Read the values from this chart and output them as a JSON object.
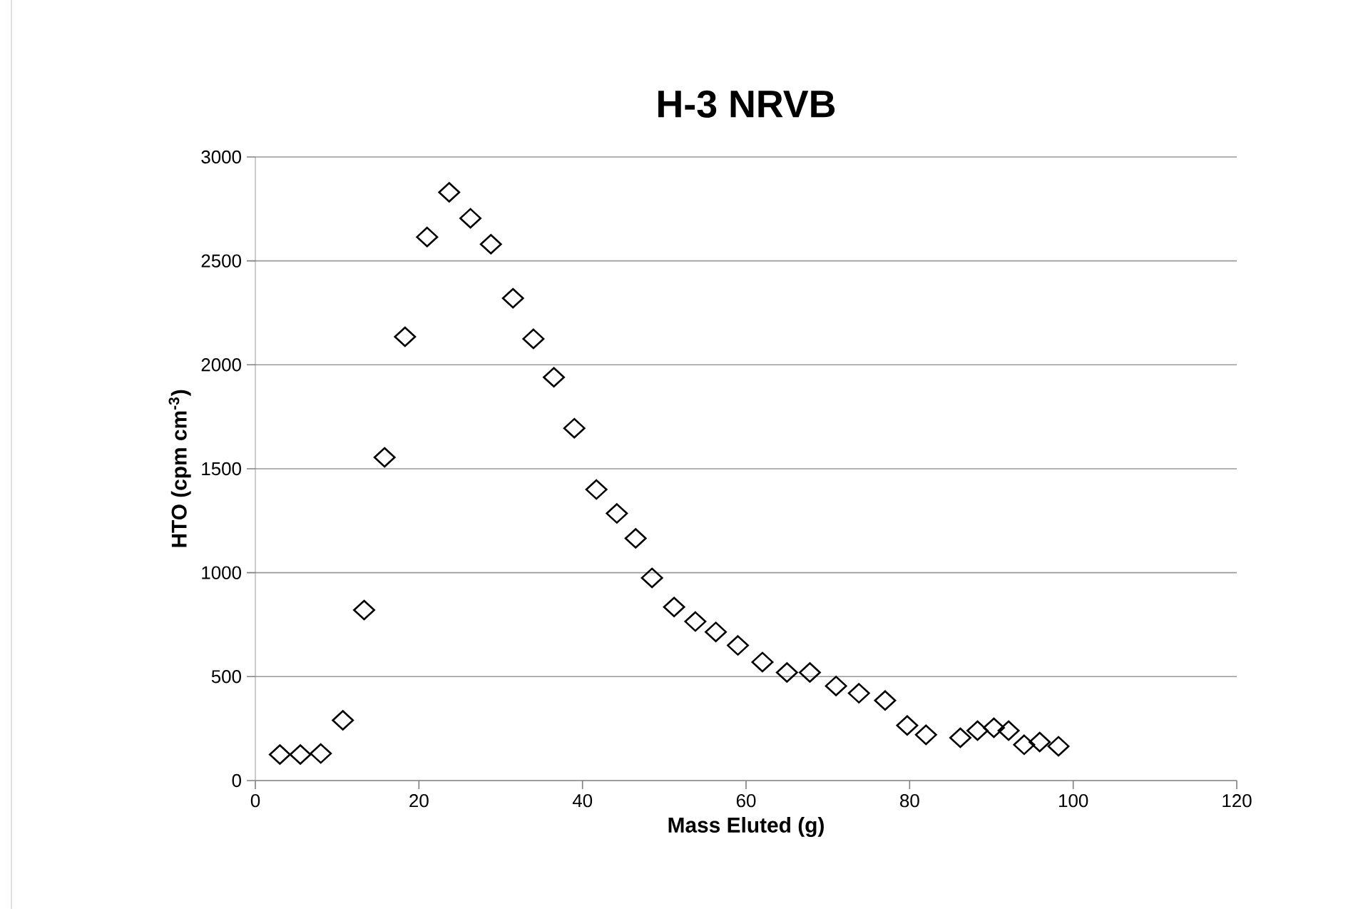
{
  "chart_data": {
    "type": "scatter",
    "title": "H-3 NRVB",
    "xlabel": "Mass Eluted (g)",
    "ylabel": "HTO (cpm cm$^{-3}$)",
    "x": [
      3,
      5.5,
      8,
      10.7,
      13.3,
      15.8,
      18.3,
      21,
      23.7,
      26.3,
      28.8,
      31.5,
      34,
      36.5,
      39,
      41.7,
      44.2,
      46.5,
      48.5,
      51.2,
      53.8,
      56.3,
      59,
      62,
      65,
      67.8,
      71,
      73.8,
      77,
      79.7,
      82,
      86.2,
      88.3,
      90.3,
      92.1,
      94,
      95.9,
      98.2
    ],
    "values": [
      125,
      125,
      130,
      290,
      820,
      1555,
      2135,
      2615,
      2830,
      2705,
      2580,
      2320,
      2125,
      1940,
      1695,
      1400,
      1285,
      1165,
      975,
      835,
      765,
      715,
      650,
      570,
      520,
      520,
      455,
      420,
      385,
      265,
      220,
      206,
      240,
      254,
      240,
      172,
      185,
      165
    ],
    "color": "#000000",
    "marker": "diamond",
    "xlim": [
      0,
      120
    ],
    "xticks": [
      0,
      20,
      40,
      60,
      80,
      100,
      120
    ],
    "ylim": [
      0,
      3000
    ],
    "yticks": [
      0,
      500,
      1000,
      1500,
      2000,
      2500,
      3000
    ],
    "grid": "y"
  }
}
